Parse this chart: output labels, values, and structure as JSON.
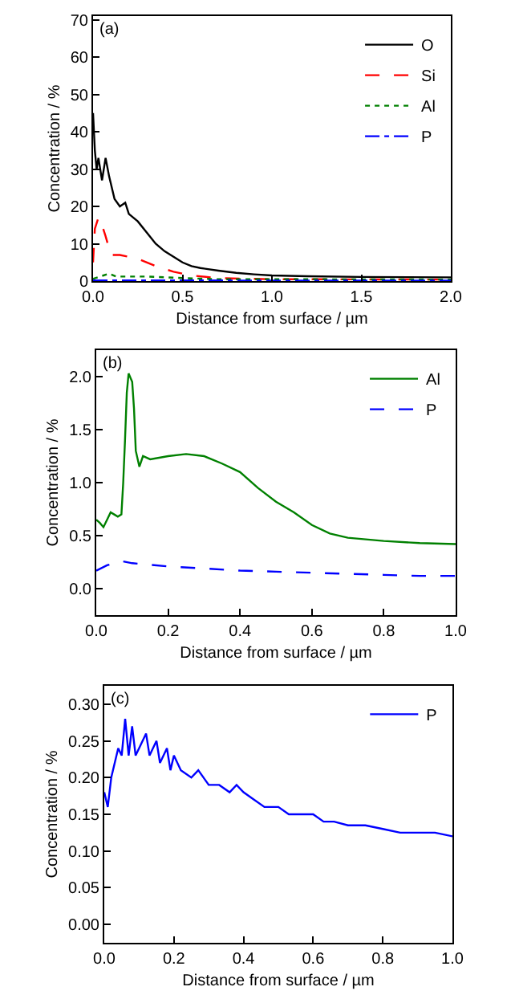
{
  "chart_data": [
    {
      "type": "line",
      "annotations": [
        "(a)"
      ],
      "xlabel": "Distance from surface / µm",
      "ylabel": "Concentration / %",
      "xlim": [
        0,
        2
      ],
      "ylim": [
        0,
        71
      ],
      "xticks": [
        {
          "value": 0,
          "label": "0.0"
        },
        {
          "value": 0.5,
          "label": "0.5"
        },
        {
          "value": 1,
          "label": "1.0"
        },
        {
          "value": 1.5,
          "label": "1.5"
        },
        {
          "value": 2,
          "label": "2.0"
        }
      ],
      "yticks": [
        0,
        10,
        20,
        30,
        40,
        50,
        60,
        70
      ],
      "grid": false,
      "legend": "top right",
      "series": [
        {
          "name": "O",
          "color": "#000000",
          "line_style": "solid",
          "x": [
            0,
            0.01,
            0.02,
            0.03,
            0.05,
            0.07,
            0.09,
            0.12,
            0.15,
            0.18,
            0.2,
            0.25,
            0.3,
            0.35,
            0.4,
            0.45,
            0.5,
            0.55,
            0.6,
            0.7,
            0.8,
            0.9,
            1.0,
            1.2,
            1.5,
            2.0
          ],
          "values": [
            45,
            35,
            30,
            33,
            27,
            33,
            28,
            22,
            20,
            21,
            18,
            16,
            13,
            10,
            8,
            6.5,
            5,
            4,
            3.5,
            2.8,
            2.2,
            1.8,
            1.5,
            1.3,
            1.1,
            1.0
          ]
        },
        {
          "name": "Si",
          "color": "#ff0000",
          "line_style": "dashed",
          "x": [
            0,
            0.01,
            0.03,
            0.05,
            0.07,
            0.1,
            0.15,
            0.25,
            0.35,
            0.45,
            0.55,
            0.7,
            1.0,
            2.0
          ],
          "values": [
            5,
            14,
            17,
            15,
            12,
            7,
            7,
            6,
            4,
            2.5,
            1.5,
            0.8,
            0.5,
            0.4
          ]
        },
        {
          "name": "Al",
          "color": "#008000",
          "line_style": "dotted",
          "x": [
            0,
            0.09,
            0.13,
            0.3,
            0.5,
            0.7,
            1.0,
            2.0
          ],
          "values": [
            0.6,
            2,
            1.2,
            1.2,
            0.8,
            0.5,
            0.5,
            0.4
          ]
        },
        {
          "name": "P",
          "color": "#0000ff",
          "line_style": "dashdot",
          "x": [
            0,
            0.1,
            0.5,
            1.0,
            2.0
          ],
          "values": [
            0.2,
            0.2,
            0.2,
            0.1,
            0.1
          ]
        }
      ]
    },
    {
      "type": "line",
      "annotations": [
        "(b)"
      ],
      "xlabel": "Distance from surface / µm",
      "ylabel": "Concentration / %",
      "xlim": [
        0,
        1
      ],
      "ylim": [
        -0.25,
        2.25
      ],
      "xticks": [
        {
          "value": 0,
          "label": "0.0"
        },
        {
          "value": 0.2,
          "label": "0.2"
        },
        {
          "value": 0.4,
          "label": "0.4"
        },
        {
          "value": 0.6,
          "label": "0.6"
        },
        {
          "value": 0.8,
          "label": "0.8"
        },
        {
          "value": 1,
          "label": "1.0"
        }
      ],
      "yticks": [
        {
          "value": 0,
          "label": "0.0"
        },
        {
          "value": 0.5,
          "label": "0.5"
        },
        {
          "value": 1,
          "label": "1.0"
        },
        {
          "value": 1.5,
          "label": "1.5"
        },
        {
          "value": 2,
          "label": "2.0"
        }
      ],
      "grid": false,
      "legend": "top right",
      "series": [
        {
          "name": "Al",
          "color": "#008000",
          "line_style": "solid",
          "x": [
            0,
            0.01,
            0.02,
            0.03,
            0.04,
            0.05,
            0.06,
            0.07,
            0.075,
            0.08,
            0.085,
            0.09,
            0.1,
            0.105,
            0.11,
            0.12,
            0.13,
            0.15,
            0.2,
            0.25,
            0.3,
            0.35,
            0.4,
            0.45,
            0.5,
            0.55,
            0.6,
            0.65,
            0.7,
            0.8,
            0.9,
            1.0
          ],
          "values": [
            0.65,
            0.62,
            0.58,
            0.65,
            0.72,
            0.7,
            0.68,
            0.7,
            1.0,
            1.4,
            1.85,
            2.03,
            1.95,
            1.7,
            1.3,
            1.15,
            1.25,
            1.22,
            1.25,
            1.27,
            1.25,
            1.18,
            1.1,
            0.95,
            0.82,
            0.72,
            0.6,
            0.52,
            0.48,
            0.45,
            0.43,
            0.42
          ]
        },
        {
          "name": "P",
          "color": "#0000ff",
          "line_style": "dashed",
          "x": [
            0,
            0.03,
            0.07,
            0.1,
            0.2,
            0.3,
            0.4,
            0.5,
            0.6,
            0.7,
            0.8,
            0.9,
            1.0
          ],
          "values": [
            0.17,
            0.22,
            0.26,
            0.24,
            0.21,
            0.19,
            0.17,
            0.16,
            0.15,
            0.14,
            0.13,
            0.12,
            0.12
          ]
        }
      ]
    },
    {
      "type": "line",
      "annotations": [
        "(c)"
      ],
      "xlabel": "Distance from surface / µm",
      "ylabel": "Concentration / %",
      "xlim": [
        0,
        1
      ],
      "ylim": [
        -0.025,
        0.325
      ],
      "xticks": [
        {
          "value": 0,
          "label": "0.0"
        },
        {
          "value": 0.2,
          "label": "0.2"
        },
        {
          "value": 0.4,
          "label": "0.4"
        },
        {
          "value": 0.6,
          "label": "0.6"
        },
        {
          "value": 0.8,
          "label": "0.8"
        },
        {
          "value": 1,
          "label": "1.0"
        }
      ],
      "yticks": [
        {
          "value": 0,
          "label": "0.00"
        },
        {
          "value": 0.05,
          "label": "0.05"
        },
        {
          "value": 0.1,
          "label": "0.10"
        },
        {
          "value": 0.15,
          "label": "0.15"
        },
        {
          "value": 0.2,
          "label": "0.20"
        },
        {
          "value": 0.25,
          "label": "0.25"
        },
        {
          "value": 0.3,
          "label": "0.30"
        }
      ],
      "grid": false,
      "legend": "top right",
      "series": [
        {
          "name": "P",
          "color": "#0000ff",
          "line_style": "solid",
          "x": [
            0,
            0.01,
            0.02,
            0.03,
            0.04,
            0.05,
            0.06,
            0.07,
            0.08,
            0.09,
            0.1,
            0.12,
            0.13,
            0.15,
            0.16,
            0.18,
            0.19,
            0.2,
            0.22,
            0.25,
            0.27,
            0.3,
            0.33,
            0.36,
            0.38,
            0.4,
            0.43,
            0.46,
            0.5,
            0.53,
            0.56,
            0.6,
            0.63,
            0.66,
            0.7,
            0.75,
            0.8,
            0.85,
            0.9,
            0.95,
            1.0
          ],
          "values": [
            0.18,
            0.16,
            0.2,
            0.22,
            0.24,
            0.23,
            0.28,
            0.23,
            0.27,
            0.23,
            0.24,
            0.26,
            0.23,
            0.25,
            0.22,
            0.24,
            0.21,
            0.23,
            0.21,
            0.2,
            0.21,
            0.19,
            0.19,
            0.18,
            0.19,
            0.18,
            0.17,
            0.16,
            0.16,
            0.15,
            0.15,
            0.15,
            0.14,
            0.14,
            0.135,
            0.135,
            0.13,
            0.125,
            0.125,
            0.125,
            0.12
          ]
        }
      ]
    }
  ]
}
